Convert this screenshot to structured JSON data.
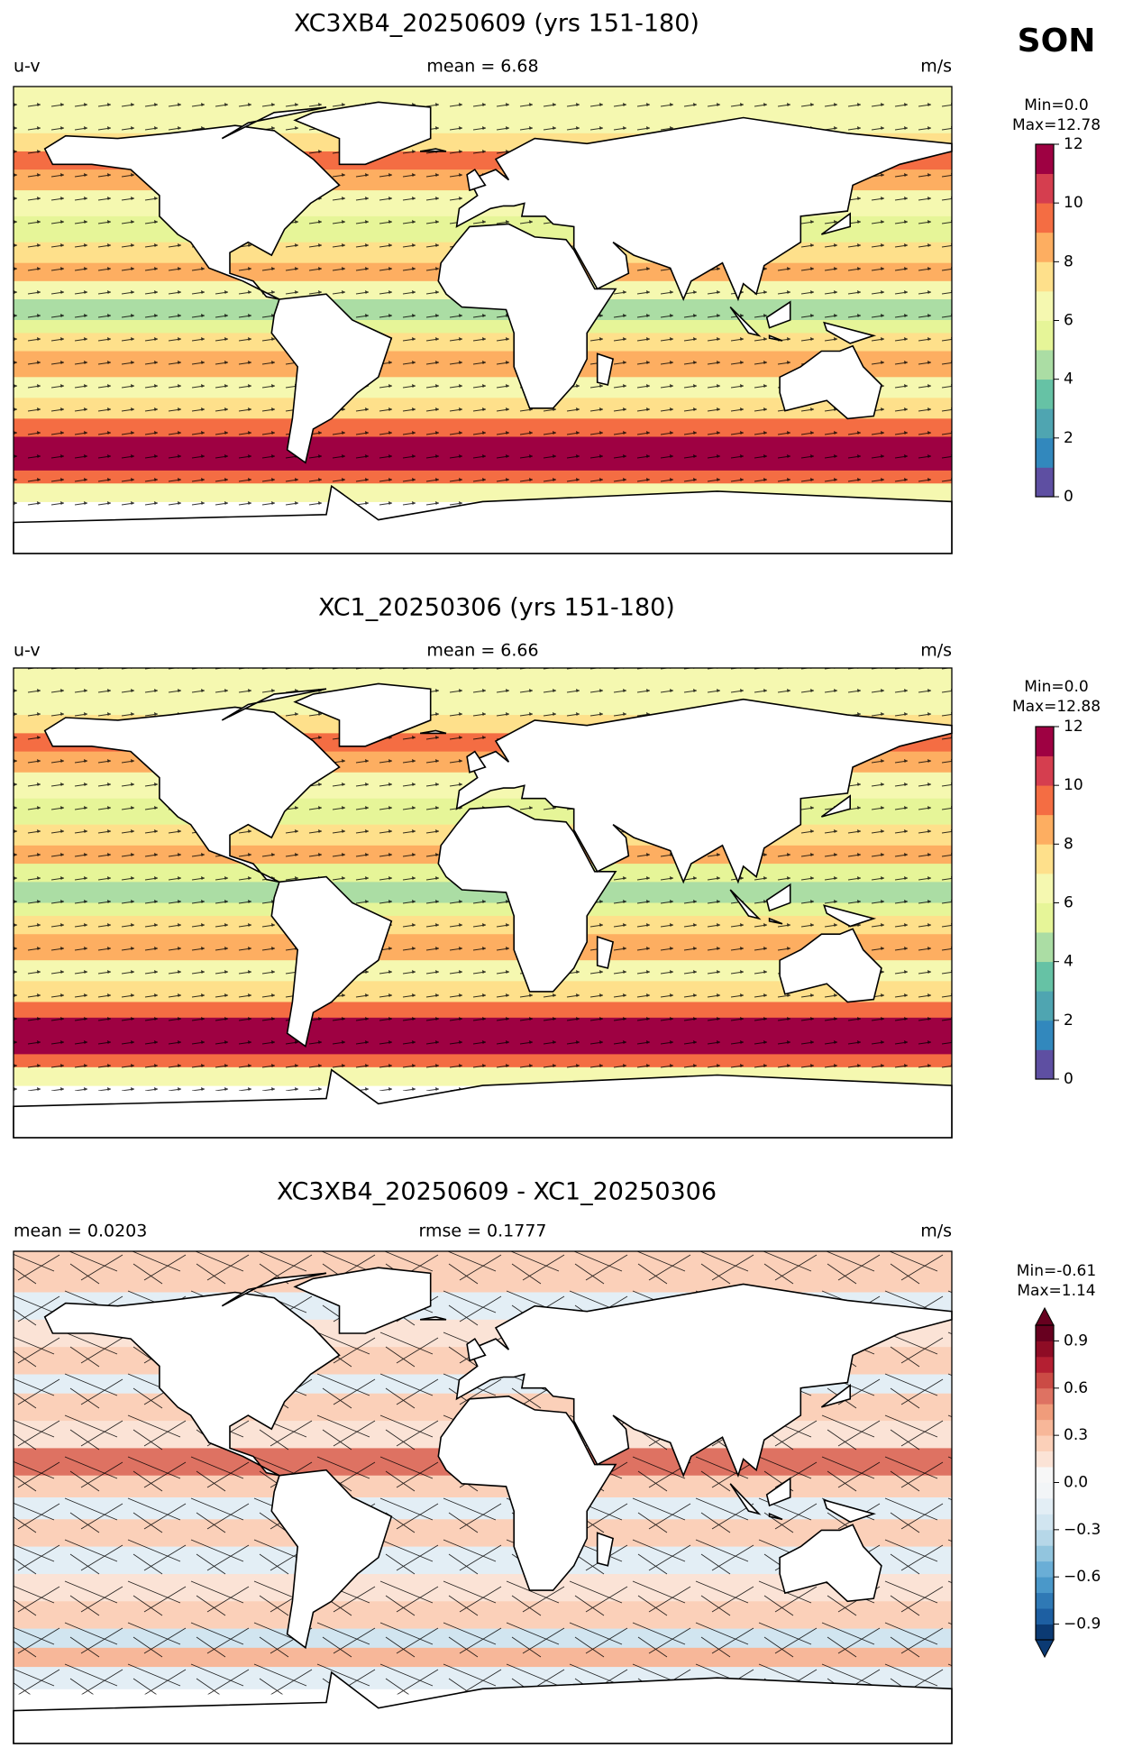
{
  "season": "SON",
  "panels": [
    {
      "title": "XC3XB4_20250609 (yrs 151-180)",
      "left": "u-v",
      "center": "mean = 6.68",
      "right": "m/s",
      "min_text": "Min=0.0",
      "max_text": "Max=12.78",
      "colorbar": {
        "vlim": [
          0,
          12
        ],
        "ticks": [
          0,
          2,
          4,
          6,
          8,
          10,
          12
        ],
        "extend": false,
        "colors": [
          "#5e4fa2",
          "#3288bd",
          "#4fa5b1",
          "#66c2a5",
          "#abdda4",
          "#e6f598",
          "#f5f8b0",
          "#fee08b",
          "#fdae61",
          "#f46d43",
          "#d53e4f",
          "#9e0142"
        ]
      }
    },
    {
      "title": "XC1_20250306 (yrs 151-180)",
      "left": "u-v",
      "center": "mean = 6.66",
      "right": "m/s",
      "min_text": "Min=0.0",
      "max_text": "Max=12.88",
      "colorbar": {
        "vlim": [
          0,
          12
        ],
        "ticks": [
          0,
          2,
          4,
          6,
          8,
          10,
          12
        ],
        "extend": false,
        "colors": [
          "#5e4fa2",
          "#3288bd",
          "#4fa5b1",
          "#66c2a5",
          "#abdda4",
          "#e6f598",
          "#f5f8b0",
          "#fee08b",
          "#fdae61",
          "#f46d43",
          "#d53e4f",
          "#9e0142"
        ]
      }
    },
    {
      "title": "XC3XB4_20250609 - XC1_20250306",
      "left": "mean = 0.0203",
      "center": "rmse = 0.1777",
      "right": "m/s",
      "min_text": "Min=-0.61",
      "max_text": "Max=1.14",
      "colorbar": {
        "vlim": [
          -1,
          1
        ],
        "extend": true,
        "ticks": [
          {
            "value": -0.9,
            "label": "−0.9"
          },
          {
            "value": -0.6,
            "label": "−0.6"
          },
          {
            "value": -0.3,
            "label": "−0.3"
          },
          {
            "value": 0,
            "label": "0.0"
          },
          0.3,
          0.6,
          0.9
        ],
        "colors": [
          "#0b3a73",
          "#1d5fa2",
          "#2f79b5",
          "#4a98c9",
          "#6aaed6",
          "#92c5de",
          "#b6d7e8",
          "#d1e5f0",
          "#e3eef5",
          "#f2f5f7",
          "#f7f7f7",
          "#fbe3d6",
          "#fbd0b9",
          "#f7b799",
          "#f09c7b",
          "#de7262",
          "#cb4b45",
          "#b41f32",
          "#8e0c25",
          "#67001f"
        ]
      }
    }
  ]
}
